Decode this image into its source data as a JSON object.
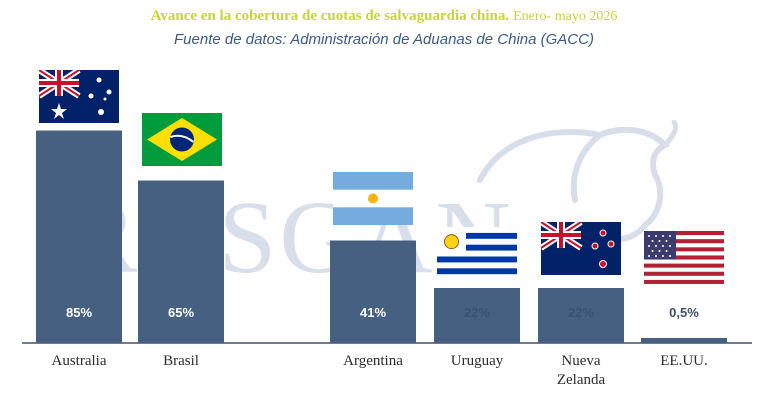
{
  "chart_data": {
    "type": "bar",
    "title": "Avance en la cobertura de cuotas de salvaguardia china.",
    "period": "Enero- mayo 2026",
    "subtitle": "Fuente de datos: Administración de Aduanas de China (GACC)",
    "categories": [
      "Australia",
      "Brasil",
      "Argentina",
      "Uruguay",
      "Nueva Zelanda",
      "EE.UU."
    ],
    "values": [
      85,
      65,
      41,
      22,
      22,
      0.5
    ],
    "value_labels": [
      "85%",
      "65%",
      "41%",
      "22%",
      "22%",
      "0,5%"
    ],
    "flags": [
      "australia-flag-icon",
      "brazil-flag-icon",
      "argentina-flag-icon",
      "uruguay-flag-icon",
      "new-zealand-flag-icon",
      "usa-flag-icon"
    ],
    "unit": "%",
    "ylim": [
      0,
      100
    ],
    "grid": false,
    "bar_color": "#466082",
    "label_color": "#ffffff",
    "watermark": "ROSGAN"
  }
}
